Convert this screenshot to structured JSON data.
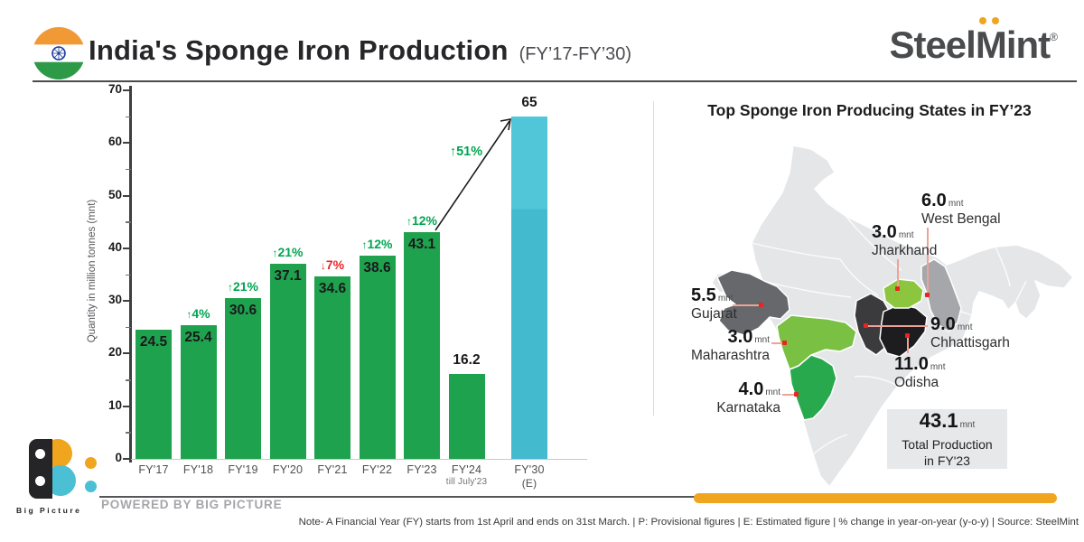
{
  "header": {
    "title": "India's Sponge Iron Production",
    "subtitle": "(FY’17-FY’30)",
    "brand": {
      "steel": "Steel",
      "m": "M",
      "rest": "int",
      "reg": "®"
    },
    "flag_icon": "india-flag"
  },
  "chart_data": {
    "type": "bar",
    "title": "India's Sponge Iron Production (FY'17-FY'30)",
    "ylabel": "Quantity in million tonnes (mnt)",
    "ylim": [
      0,
      70
    ],
    "yticks": [
      0,
      10,
      20,
      30,
      40,
      50,
      60,
      70
    ],
    "grid": false,
    "colors": {
      "green": "#1fa24e",
      "cyan": "#4bc0d4",
      "pct_up": "#00a551",
      "pct_down": "#e9252c"
    },
    "bars": [
      {
        "category": "FY'17",
        "value": 24.5,
        "label": "24.5",
        "color": "green",
        "value_label": "inside"
      },
      {
        "category": "FY'18",
        "value": 25.4,
        "label": "25.4",
        "color": "green",
        "value_label": "inside",
        "pct": {
          "text": "4%",
          "dir": "up"
        }
      },
      {
        "category": "FY'19",
        "value": 30.6,
        "label": "30.6",
        "color": "green",
        "value_label": "inside",
        "pct": {
          "text": "21%",
          "dir": "up"
        }
      },
      {
        "category": "FY'20",
        "value": 37.1,
        "label": "37.1",
        "color": "green",
        "value_label": "inside",
        "pct": {
          "text": "21%",
          "dir": "up"
        }
      },
      {
        "category": "FY'21",
        "value": 34.6,
        "label": "34.6",
        "color": "green",
        "value_label": "inside",
        "pct": {
          "text": "7%",
          "dir": "down"
        }
      },
      {
        "category": "FY'22",
        "value": 38.6,
        "label": "38.6",
        "color": "green",
        "value_label": "inside",
        "pct": {
          "text": "12%",
          "dir": "up"
        }
      },
      {
        "category": "FY'23",
        "value": 43.1,
        "label": "43.1",
        "color": "green",
        "value_label": "inside",
        "pct": {
          "text": "12%",
          "dir": "up"
        }
      },
      {
        "category": "FY'24",
        "sublabel": "till July'23",
        "value": 16.2,
        "label": "16.2",
        "color": "green",
        "value_label": "above"
      },
      {
        "category": "FY'30",
        "sublabel": "(E)",
        "value": 65,
        "label": "65",
        "color": "cyan",
        "value_label": "above",
        "extra_gap": 20
      }
    ],
    "growth_annotation": {
      "text": "51%",
      "dir": "up",
      "from": "FY'23",
      "to": "FY'30"
    }
  },
  "map": {
    "title": "Top Sponge Iron Producing States in FY’23",
    "unit": "mnt",
    "states": [
      {
        "id": "westbengal",
        "name": "West Bengal",
        "value": "6.0",
        "color": "#a5a7aa"
      },
      {
        "id": "jharkhand",
        "name": "Jharkhand",
        "value": "3.0",
        "color": "#8cc63f"
      },
      {
        "id": "gujarat",
        "name": "Gujarat",
        "value": "5.5",
        "color": "#66686b"
      },
      {
        "id": "maharashtra",
        "name": "Maharashtra",
        "value": "3.0",
        "color": "#7ac143"
      },
      {
        "id": "karnataka",
        "name": "Karnataka",
        "value": "4.0",
        "color": "#29a94e"
      },
      {
        "id": "chhattisgarh",
        "name": "Chhattisgarh",
        "value": "9.0",
        "color": "#3b3b3d"
      },
      {
        "id": "odisha",
        "name": "Odisha",
        "value": "11.0",
        "color": "#1d1d1f"
      }
    ],
    "total": {
      "value": "43.1",
      "unit": "mnt",
      "line1": "Total Production",
      "line2": "in FY'23"
    }
  },
  "footer": {
    "powered_by": "POWERED BY BIG PICTURE",
    "logo_text": "Big Picture",
    "note": "Note- A Financial Year (FY) starts from 1st April and ends on 31st March. | P: Provisional figures | E: Estimated figure | % change in year-on-year (y-o-y) | Source: SteelMint"
  }
}
